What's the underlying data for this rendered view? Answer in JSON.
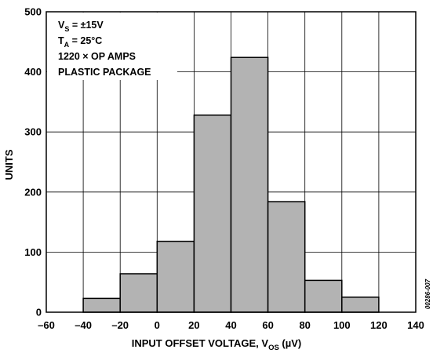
{
  "chart_data": {
    "type": "bar",
    "title": "",
    "xlabel": "INPUT OFFSET VOLTAGE, V",
    "xlabel_sub": "OS",
    "xlabel_unit": " (µV)",
    "ylabel": "UNITS",
    "xlim": [
      -60,
      140
    ],
    "ylim": [
      0,
      500
    ],
    "x_ticks": [
      "–60",
      "–40",
      "–20",
      "0",
      "20",
      "40",
      "60",
      "80",
      "100",
      "120",
      "140"
    ],
    "x_tick_values": [
      -60,
      -40,
      -20,
      0,
      20,
      40,
      60,
      80,
      100,
      120,
      140
    ],
    "y_ticks": [
      "0",
      "100",
      "200",
      "300",
      "400",
      "500"
    ],
    "y_tick_values": [
      0,
      100,
      200,
      300,
      400,
      500
    ],
    "grid": true,
    "bins": [
      {
        "from": -40,
        "to": -20,
        "value": 23
      },
      {
        "from": -20,
        "to": 0,
        "value": 64
      },
      {
        "from": 0,
        "to": 20,
        "value": 118
      },
      {
        "from": 20,
        "to": 40,
        "value": 328
      },
      {
        "from": 40,
        "to": 60,
        "value": 424
      },
      {
        "from": 60,
        "to": 80,
        "value": 184
      },
      {
        "from": 80,
        "to": 100,
        "value": 53
      },
      {
        "from": 100,
        "to": 120,
        "value": 25
      }
    ],
    "bar_color": "#b3b3b3",
    "annotations": {
      "line1_main": "V",
      "line1_sub": "S",
      "line1_rest": " = ±15V",
      "line2_main": "T",
      "line2_sub": "A",
      "line2_rest": " = 25°C",
      "line3": "1220 × OP AMPS",
      "line4": "PLASTIC PACKAGE"
    },
    "side_code": "00286-007"
  }
}
